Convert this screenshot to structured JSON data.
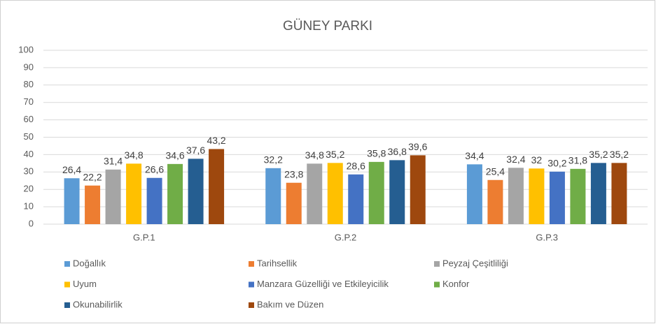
{
  "chart_data": {
    "type": "bar",
    "title": "GÜNEY PARKI",
    "categories": [
      "G.P.1",
      "G.P.2",
      "G.P.3"
    ],
    "series": [
      {
        "name": "Doğallık",
        "color": "#5b9bd5",
        "values": [
          26.4,
          32.2,
          34.4
        ],
        "value_labels": [
          "26,4",
          "32,2",
          "34,4"
        ]
      },
      {
        "name": "Tarihsellik",
        "color": "#ed7d31",
        "values": [
          22.2,
          23.8,
          25.4
        ],
        "value_labels": [
          "22,2",
          "23,8",
          "25,4"
        ]
      },
      {
        "name": "Peyzaj Çeşitliliği",
        "color": "#a5a5a5",
        "values": [
          31.4,
          34.8,
          32.4
        ],
        "value_labels": [
          "31,4",
          "34,8",
          "32,4"
        ]
      },
      {
        "name": "Uyum",
        "color": "#ffc000",
        "values": [
          34.8,
          35.2,
          32
        ],
        "value_labels": [
          "34,8",
          "35,2",
          "32"
        ]
      },
      {
        "name": "Manzara Güzelliği ve Etkileyicilik",
        "color": "#4472c4",
        "values": [
          26.6,
          28.6,
          30.2
        ],
        "value_labels": [
          "26,6",
          "28,6",
          "30,2"
        ]
      },
      {
        "name": "Konfor",
        "color": "#70ad47",
        "values": [
          34.6,
          35.8,
          31.8
        ],
        "value_labels": [
          "34,6",
          "35,8",
          "31,8"
        ]
      },
      {
        "name": "Okunabilirlik",
        "color": "#255e91",
        "values": [
          37.6,
          36.8,
          35.2
        ],
        "value_labels": [
          "37,6",
          "36,8",
          "35,2"
        ]
      },
      {
        "name": "Bakım ve Düzen",
        "color": "#9e480e",
        "values": [
          43.2,
          39.6,
          35.2
        ],
        "value_labels": [
          "43,2",
          "39,6",
          "35,2"
        ]
      }
    ],
    "ylim": [
      0,
      100
    ],
    "yticks": [
      0,
      10,
      20,
      30,
      40,
      50,
      60,
      70,
      80,
      90,
      100
    ],
    "grid": true
  }
}
